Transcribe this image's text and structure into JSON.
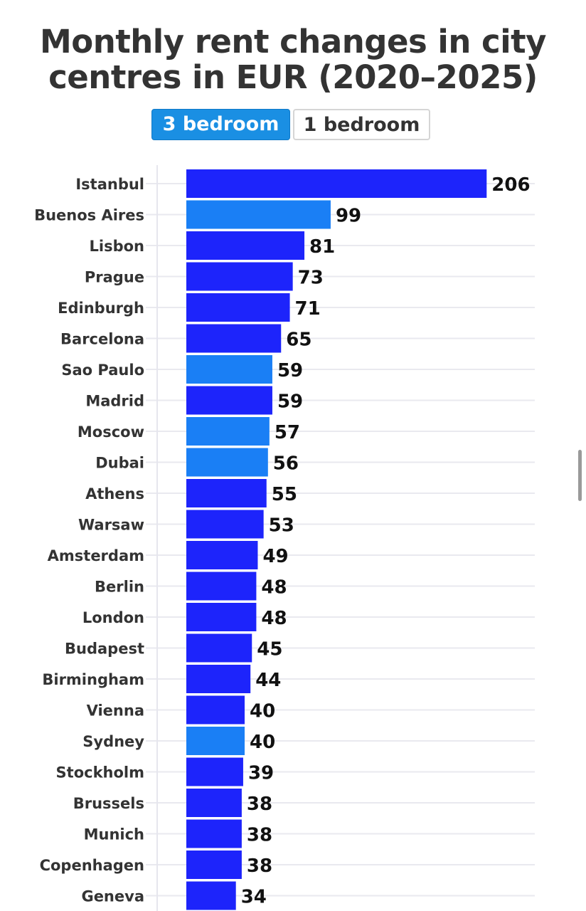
{
  "title_lines": [
    "Monthly rent changes in city",
    "centres in EUR (2020–2025)"
  ],
  "toggle": {
    "active_label": "3 bedroom",
    "inactive_label": "1 bedroom",
    "active_color": "#1a8fe3"
  },
  "colors": {
    "europe_bar": "#1d24fb",
    "non_europe_bar": "#1a7ff5",
    "gridline": "#e9e9ef"
  },
  "chart_data": {
    "type": "bar",
    "orientation": "horizontal",
    "title": "Monthly rent changes in city centres in EUR (2020–2025)",
    "xlabel": "",
    "ylabel": "",
    "grid": true,
    "legend": "none",
    "categories": [
      "Istanbul",
      "Buenos Aires",
      "Lisbon",
      "Prague",
      "Edinburgh",
      "Barcelona",
      "Sao Paulo",
      "Madrid",
      "Moscow",
      "Dubai",
      "Athens",
      "Warsaw",
      "Amsterdam",
      "Berlin",
      "London",
      "Budapest",
      "Birmingham",
      "Vienna",
      "Sydney",
      "Stockholm",
      "Brussels",
      "Munich",
      "Copenhagen",
      "Geneva"
    ],
    "values": [
      206,
      99,
      81,
      73,
      71,
      65,
      59,
      59,
      57,
      56,
      55,
      53,
      49,
      48,
      48,
      45,
      44,
      40,
      40,
      39,
      38,
      38,
      38,
      34
    ],
    "bar_colors": [
      "#1d24fb",
      "#1a7ff5",
      "#1d24fb",
      "#1d24fb",
      "#1d24fb",
      "#1d24fb",
      "#1a7ff5",
      "#1d24fb",
      "#1a7ff5",
      "#1a7ff5",
      "#1d24fb",
      "#1d24fb",
      "#1d24fb",
      "#1d24fb",
      "#1d24fb",
      "#1d24fb",
      "#1d24fb",
      "#1d24fb",
      "#1a7ff5",
      "#1d24fb",
      "#1d24fb",
      "#1d24fb",
      "#1d24fb",
      "#1d24fb"
    ]
  }
}
